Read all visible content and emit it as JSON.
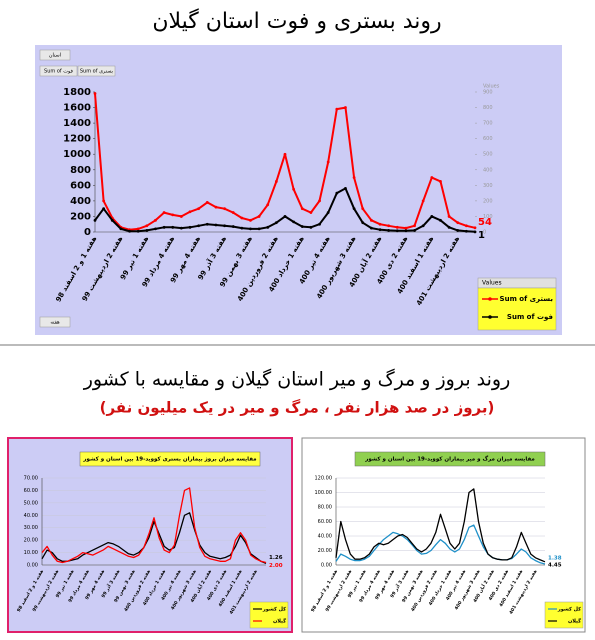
{
  "header": {
    "title": "روند بستری و فوت استان گیلان"
  },
  "section2": {
    "title": "روند بروز و مرگ و میر استان گیلان و مقایسه با کشور",
    "subtitle": "(بروز در صد هزار نفر ، مرگ و میر در یک میلیون نفر)"
  },
  "chart_data": [
    {
      "type": "line",
      "filter_labels": [
        "استان",
        "Sum of فوت",
        "Sum of بستری"
      ],
      "axis_field": "هفته",
      "legend_title": "Values",
      "y2label": "Values",
      "grid": false,
      "markers": true,
      "categories": [
        "هفته 1 و 2 اسفند 98",
        null,
        null,
        "هفته 2 اردیبهشت 99",
        null,
        null,
        "هفته 1 تیر 99",
        null,
        null,
        "هفته 4 مرداد 99",
        null,
        null,
        "هفته 4 مهر 99",
        null,
        null,
        "هفته 3 آذر 99",
        null,
        null,
        "هفته 3 بهمن 99",
        null,
        null,
        "هفته 2 فروردین 400",
        null,
        null,
        "هفته 1 خرداد 400",
        null,
        null,
        "هفته 4 تیر 400",
        null,
        null,
        "هفته 3 شهریور 400",
        null,
        null,
        "هفته 2 آبان 400",
        null,
        null,
        "هفته 2 دی 400",
        null,
        null,
        "هفته 1 اسفند 400",
        null,
        null,
        "هفته 2 اردیبهشت 401",
        null,
        null
      ],
      "ylim": [
        0,
        1800
      ],
      "yticks": [
        0,
        200,
        400,
        600,
        800,
        1000,
        1200,
        1400,
        1600,
        1800
      ],
      "y2lim": [
        0,
        900
      ],
      "y2ticks": [
        0,
        100,
        200,
        300,
        400,
        500,
        600,
        700,
        800,
        900
      ],
      "series": [
        {
          "name": "Sum of بستری",
          "color": "#ff0000",
          "data_labels": "last",
          "values": [
            1780,
            400,
            180,
            60,
            30,
            40,
            80,
            150,
            250,
            220,
            200,
            260,
            300,
            380,
            320,
            300,
            250,
            180,
            150,
            200,
            350,
            650,
            1000,
            550,
            300,
            250,
            400,
            900,
            1580,
            1600,
            700,
            300,
            150,
            100,
            80,
            60,
            50,
            80,
            400,
            700,
            650,
            200,
            120,
            80,
            54
          ]
        },
        {
          "name": "Sum of فوت",
          "color": "#000000",
          "axis": "y2",
          "data_labels": "last",
          "values": [
            75,
            150,
            75,
            20,
            5,
            5,
            10,
            20,
            30,
            30,
            25,
            30,
            40,
            50,
            45,
            40,
            35,
            25,
            20,
            20,
            30,
            60,
            100,
            65,
            35,
            30,
            50,
            125,
            250,
            280,
            150,
            60,
            25,
            15,
            10,
            8,
            8,
            10,
            40,
            100,
            75,
            30,
            10,
            5,
            1
          ]
        }
      ]
    },
    {
      "type": "line",
      "title": "مقایسه میزان بروز بیماران بستری کووید-19 بین استان و کشور",
      "grid": true,
      "markers": false,
      "categories": [
        "هفته 1 و 2 اسفند 98",
        null,
        null,
        "هفته 2 اردیبهشت 99",
        null,
        null,
        "هفته 1 تیر 99",
        null,
        null,
        "هفته 4 مرداد 99",
        null,
        null,
        "هفته 4 مهر 99",
        null,
        null,
        "هفته 3 آذر 99",
        null,
        null,
        "هفته 3 بهمن 99",
        null,
        null,
        "هفته 2 فروردین 400",
        null,
        null,
        "هفته 1 خرداد 400",
        null,
        null,
        "هفته 4 تیر 400",
        null,
        null,
        "هفته 3 شهریور 400",
        null,
        null,
        "هفته 2 آبان 400",
        null,
        null,
        "هفته 2 دی 400",
        null,
        null,
        "هفته 1 اسفند 400",
        null,
        null,
        "هفته 2 اردیبهشت 401",
        null,
        null
      ],
      "ylim": [
        0,
        70
      ],
      "yticks": [
        {
          "value": 0,
          "label": "0.00"
        },
        {
          "value": 10,
          "label": "10.00"
        },
        {
          "value": 20,
          "label": "20.00"
        },
        {
          "value": 30,
          "label": "30.00"
        },
        {
          "value": 40,
          "label": "40.00"
        },
        {
          "value": 50,
          "label": "50.00"
        },
        {
          "value": 60,
          "label": "60.00"
        },
        {
          "value": 70,
          "label": "70.00"
        }
      ],
      "series": [
        {
          "name": "کل کشور",
          "color": "#000000",
          "data_labels": "last",
          "values": [
            5,
            12,
            10,
            5,
            3,
            3,
            4,
            5,
            8,
            10,
            12,
            14,
            16,
            18,
            17,
            15,
            12,
            9,
            8,
            10,
            14,
            22,
            35,
            25,
            15,
            12,
            14,
            26,
            40,
            42,
            28,
            16,
            10,
            7,
            6,
            5,
            6,
            8,
            15,
            24,
            18,
            9,
            6,
            3,
            1.26
          ],
          "value_labels": [
            null,
            null,
            null,
            null,
            null,
            null,
            null,
            null,
            null,
            null,
            null,
            null,
            null,
            null,
            null,
            null,
            null,
            null,
            null,
            null,
            null,
            null,
            null,
            null,
            null,
            null,
            null,
            null,
            null,
            null,
            null,
            null,
            null,
            null,
            null,
            null,
            null,
            null,
            null,
            null,
            null,
            null,
            null,
            null,
            "1.26"
          ]
        },
        {
          "name": "گیلان",
          "color": "#ff0000",
          "data_labels": "last",
          "values": [
            10,
            15,
            8,
            3,
            2,
            3,
            5,
            7,
            10,
            9,
            8,
            10,
            12,
            15,
            13,
            11,
            9,
            7,
            6,
            8,
            14,
            25,
            38,
            22,
            12,
            10,
            16,
            40,
            60,
            62,
            30,
            14,
            7,
            5,
            4,
            3,
            3,
            5,
            20,
            26,
            20,
            8,
            5,
            3,
            2
          ],
          "value_labels": [
            null,
            null,
            null,
            null,
            null,
            null,
            null,
            null,
            null,
            null,
            null,
            null,
            null,
            null,
            null,
            null,
            null,
            null,
            null,
            null,
            null,
            null,
            null,
            null,
            null,
            null,
            null,
            null,
            null,
            null,
            null,
            null,
            null,
            null,
            null,
            null,
            null,
            null,
            null,
            null,
            null,
            null,
            null,
            null,
            "2.00"
          ]
        }
      ]
    },
    {
      "type": "line",
      "title": "مقایسه میزان مرگ و میر بیماران کووید-19 بین استان و کشور",
      "grid": true,
      "markers": false,
      "categories": [
        "هفته 1 و 2 اسفند 98",
        null,
        null,
        "هفته 2 اردیبهشت 99",
        null,
        null,
        "هفته 1 تیر 99",
        null,
        null,
        "هفته 4 مرداد 99",
        null,
        null,
        "هفته 4 مهر 99",
        null,
        null,
        "هفته 3 آذر 99",
        null,
        null,
        "هفته 3 بهمن 99",
        null,
        null,
        "هفته 2 فروردین 400",
        null,
        null,
        "هفته 1 خرداد 400",
        null,
        null,
        "هفته 4 تیر 400",
        null,
        null,
        "هفته 3 شهریور 400",
        null,
        null,
        "هفته 2 آبان 400",
        null,
        null,
        "هفته 2 دی 400",
        null,
        null,
        "هفته 1 اسفند 400",
        null,
        null,
        "هفته 2 اردیبهشت 401",
        null,
        null
      ],
      "ylim": [
        0,
        120
      ],
      "yticks": [
        {
          "value": 0,
          "label": "0.00"
        },
        {
          "value": 20,
          "label": "20.00"
        },
        {
          "value": 40,
          "label": "40.00"
        },
        {
          "value": 60,
          "label": "60.00"
        },
        {
          "value": 80,
          "label": "80.00"
        },
        {
          "value": 100,
          "label": "100.00"
        },
        {
          "value": 120,
          "label": "120.00"
        }
      ],
      "series": [
        {
          "name": "کل کشور",
          "color": "#1e90c8",
          "data_labels": "last",
          "values": [
            5,
            15,
            12,
            8,
            6,
            6,
            8,
            12,
            20,
            28,
            35,
            40,
            45,
            43,
            40,
            35,
            28,
            20,
            15,
            16,
            20,
            28,
            35,
            30,
            22,
            18,
            22,
            35,
            52,
            55,
            40,
            25,
            15,
            10,
            8,
            7,
            7,
            9,
            15,
            22,
            18,
            10,
            6,
            3,
            1.38
          ],
          "value_labels": [
            null,
            null,
            null,
            null,
            null,
            null,
            null,
            null,
            null,
            null,
            null,
            null,
            null,
            null,
            null,
            null,
            null,
            null,
            null,
            null,
            null,
            null,
            null,
            null,
            null,
            null,
            null,
            null,
            null,
            null,
            null,
            null,
            null,
            null,
            null,
            null,
            null,
            null,
            null,
            null,
            null,
            null,
            null,
            null,
            "1.38"
          ]
        },
        {
          "name": "گیلان",
          "color": "#000000",
          "data_labels": "last",
          "values": [
            10,
            60,
            35,
            15,
            8,
            8,
            10,
            15,
            25,
            30,
            28,
            30,
            35,
            40,
            42,
            38,
            30,
            22,
            18,
            22,
            30,
            45,
            70,
            50,
            30,
            22,
            30,
            60,
            100,
            105,
            60,
            30,
            15,
            10,
            8,
            7,
            7,
            10,
            25,
            45,
            30,
            15,
            10,
            7,
            4.45
          ],
          "value_labels": [
            null,
            null,
            null,
            null,
            null,
            null,
            null,
            null,
            null,
            null,
            null,
            null,
            null,
            null,
            null,
            null,
            null,
            null,
            null,
            null,
            null,
            null,
            null,
            null,
            null,
            null,
            null,
            null,
            null,
            null,
            null,
            null,
            null,
            null,
            null,
            null,
            null,
            null,
            null,
            null,
            null,
            null,
            null,
            null,
            "4.45"
          ]
        }
      ]
    }
  ]
}
